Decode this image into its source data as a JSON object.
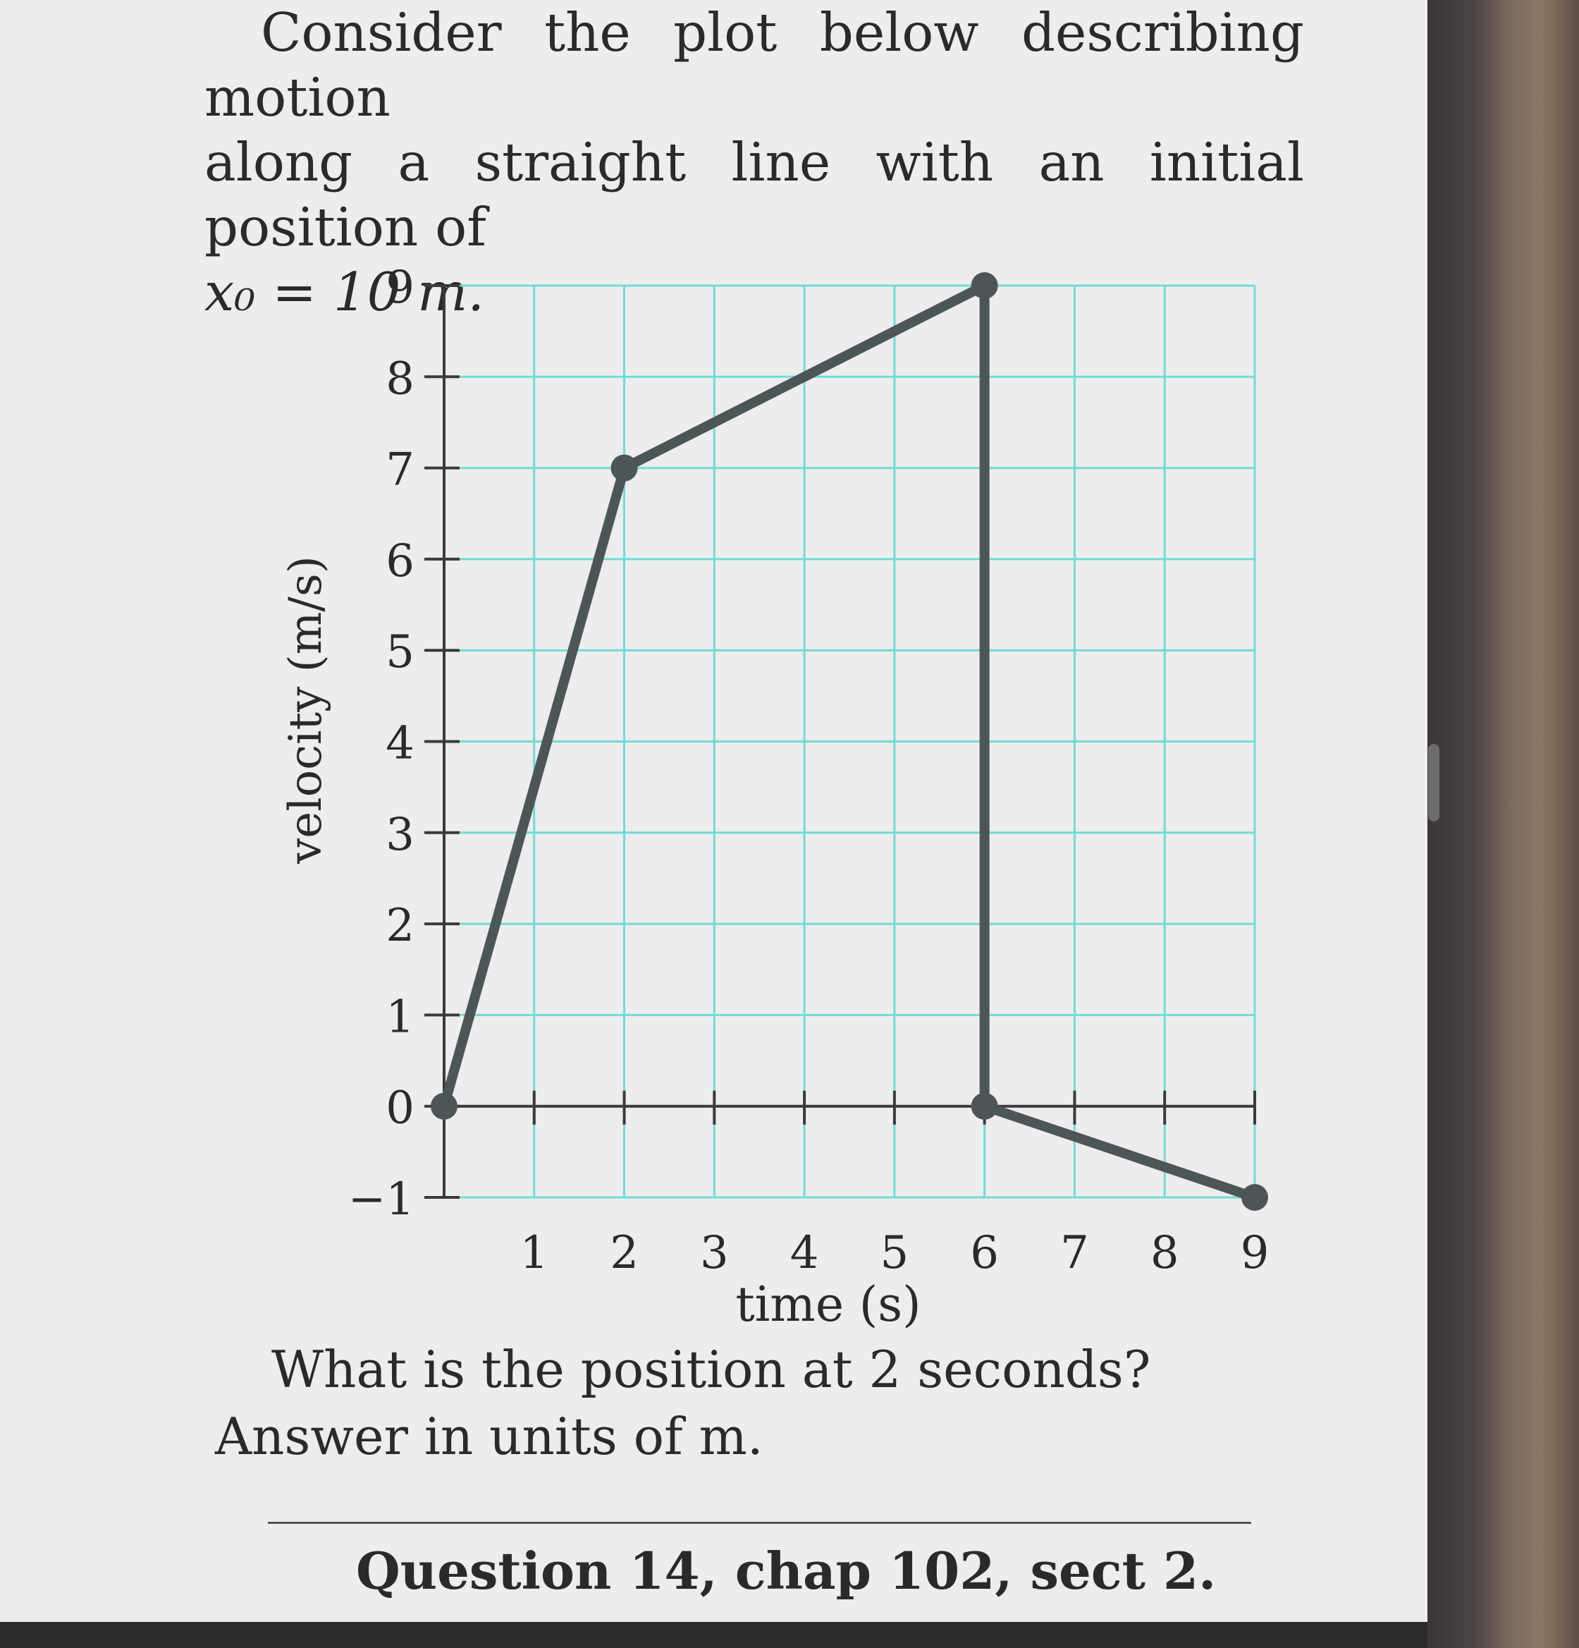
{
  "intro": {
    "line1": "Consider the plot below describing motion",
    "line2": "along a straight line with an initial position of",
    "math": "x₀ = 10 m."
  },
  "chart_data": {
    "type": "line",
    "xlabel": "time (s)",
    "ylabel": "velocity (m/s)",
    "xlim": [
      0,
      9
    ],
    "ylim": [
      -1,
      9
    ],
    "x_ticks": [
      1,
      2,
      3,
      4,
      5,
      6,
      7,
      8,
      9
    ],
    "y_ticks": [
      -1,
      0,
      1,
      2,
      3,
      4,
      5,
      6,
      7,
      8,
      9
    ],
    "x_tick_labels": [
      "1",
      "2",
      "3",
      "4",
      "5",
      "6",
      "7",
      "8",
      "9"
    ],
    "y_tick_labels": [
      "−1",
      "0",
      "1",
      "2",
      "3",
      "4",
      "5",
      "6",
      "7",
      "8",
      "9"
    ],
    "grid": true,
    "grid_color": "#6fdcd8",
    "line_color": "#4d5656",
    "points": [
      {
        "x": 0,
        "y": 0
      },
      {
        "x": 2,
        "y": 7
      },
      {
        "x": 6,
        "y": 9
      },
      {
        "x": 6,
        "y": 0
      },
      {
        "x": 9,
        "y": -1
      }
    ]
  },
  "question": "What is the position at 2 seconds?",
  "answer_prompt": "Answer in units of  m.",
  "footer": "Question 14, chap 102, sect 2."
}
